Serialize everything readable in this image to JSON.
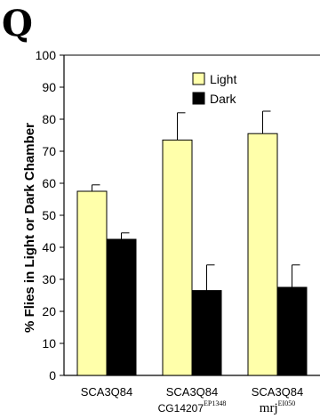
{
  "panel": {
    "letter": "Q"
  },
  "chart_data": {
    "type": "bar",
    "title": "",
    "ylabel": "% Flies in Light or Dark Chamber",
    "xlabel": "",
    "ylim": [
      0,
      100
    ],
    "yticks": [
      0,
      10,
      20,
      30,
      40,
      50,
      60,
      70,
      80,
      90,
      100
    ],
    "categories": [
      {
        "line1": "SCA3Q84",
        "line2_prefix": "",
        "line2_sup": ""
      },
      {
        "line1": "SCA3Q84",
        "line2_prefix": "CG14207",
        "line2_sup": "EP1348"
      },
      {
        "line1": "SCA3Q84",
        "line2_prefix": "mrj",
        "line2_sup": "EI050"
      }
    ],
    "series": [
      {
        "name": "Light",
        "color": "#ffffaa",
        "values": [
          57.5,
          73.5,
          75.5
        ],
        "error": [
          2,
          8.5,
          7
        ]
      },
      {
        "name": "Dark",
        "color": "#000000",
        "values": [
          42.5,
          26.5,
          27.5
        ],
        "error": [
          2,
          8,
          7
        ]
      }
    ],
    "legend": {
      "placement": "top-center",
      "entries": [
        "Light",
        "Dark"
      ]
    },
    "grid": false
  }
}
